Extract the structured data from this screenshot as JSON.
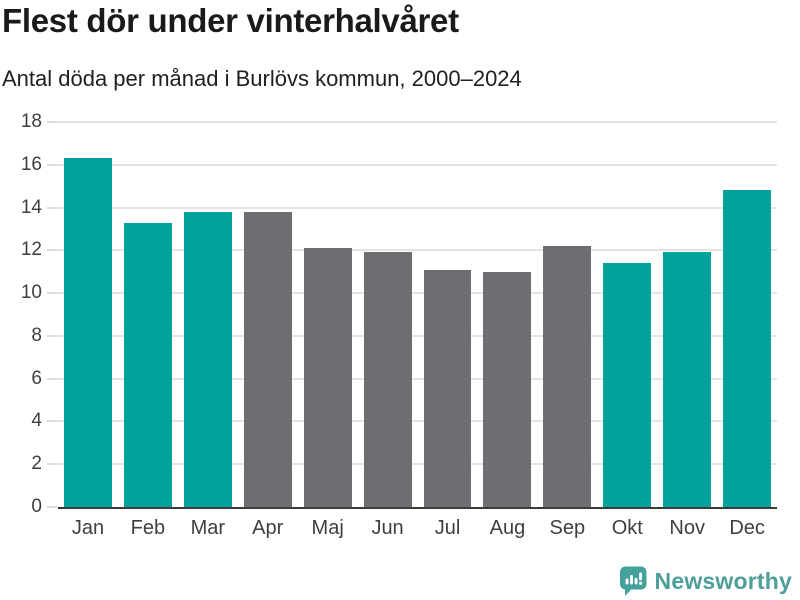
{
  "header": {
    "title": "Flest dör under vinterhalvåret",
    "subtitle": "Antal döda per månad i Burlövs kommun, 2000–2024"
  },
  "chart_data": {
    "type": "bar",
    "title": "Flest dör under vinterhalvåret",
    "subtitle": "Antal döda per månad i Burlövs kommun, 2000–2024",
    "categories": [
      "Jan",
      "Feb",
      "Mar",
      "Apr",
      "Maj",
      "Jun",
      "Jul",
      "Aug",
      "Sep",
      "Okt",
      "Nov",
      "Dec"
    ],
    "values": [
      16.3,
      13.3,
      13.8,
      13.8,
      12.1,
      11.9,
      11.1,
      11.0,
      12.2,
      11.4,
      11.9,
      14.8
    ],
    "xlabel": "",
    "ylabel": "",
    "ylim": [
      0,
      18
    ],
    "ytick_step": 2,
    "grid": "horizontal",
    "legend": "none",
    "colors": {
      "highlight": "#00a19a",
      "muted": "#6e6e72",
      "gridline": "#e3e3e3",
      "baseline": "#3b3b3b",
      "axis_text": "#3f3f3f"
    },
    "bar_color_keys": [
      "highlight",
      "highlight",
      "highlight",
      "muted",
      "muted",
      "muted",
      "muted",
      "muted",
      "muted",
      "highlight",
      "highlight",
      "highlight"
    ]
  },
  "footer": {
    "brand": "Newsworthy",
    "brand_color": "#4d9e99",
    "logo_icon_color": "#45a19b",
    "logo_icon": "newsworthy-speech-bubble-bar-chart-icon"
  }
}
